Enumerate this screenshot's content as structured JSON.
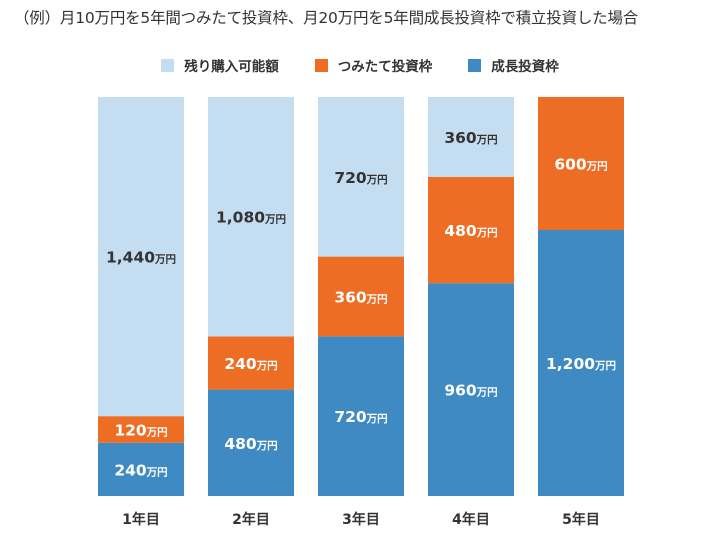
{
  "title": "（例）月10万円を5年間つみたて投資枠、月20万円を5年間成長投資枠で積立投資した場合",
  "legend": [
    {
      "name": "残り購入可能額",
      "color": "#c5ddf0"
    },
    {
      "name": "つみたて投資枠",
      "color": "#ec6d23"
    },
    {
      "name": "成長投資枠",
      "color": "#3f8ac2"
    }
  ],
  "chart_data": {
    "type": "bar",
    "stacked": true,
    "categories": [
      "1年目",
      "2年目",
      "3年目",
      "4年目",
      "5年目"
    ],
    "unit": "万円",
    "series": [
      {
        "name": "成長投資枠",
        "color": "#3f8ac2",
        "label_color": "#ffffff",
        "values": [
          240,
          480,
          720,
          960,
          1200
        ],
        "labels": [
          "240",
          "480",
          "720",
          "960",
          "1,200"
        ]
      },
      {
        "name": "つみたて投資枠",
        "color": "#ec6d23",
        "label_color": "#ffffff",
        "values": [
          120,
          240,
          360,
          480,
          600
        ],
        "labels": [
          "120",
          "240",
          "360",
          "480",
          "600"
        ]
      },
      {
        "name": "残り購入可能額",
        "color": "#c5ddf0",
        "label_color": "#333333",
        "values": [
          1440,
          1080,
          720,
          360,
          0
        ],
        "labels": [
          "1,440",
          "1,080",
          "720",
          "360",
          ""
        ]
      }
    ],
    "ylim": [
      0,
      1800
    ],
    "grid": false,
    "legend_position": "top-center"
  }
}
